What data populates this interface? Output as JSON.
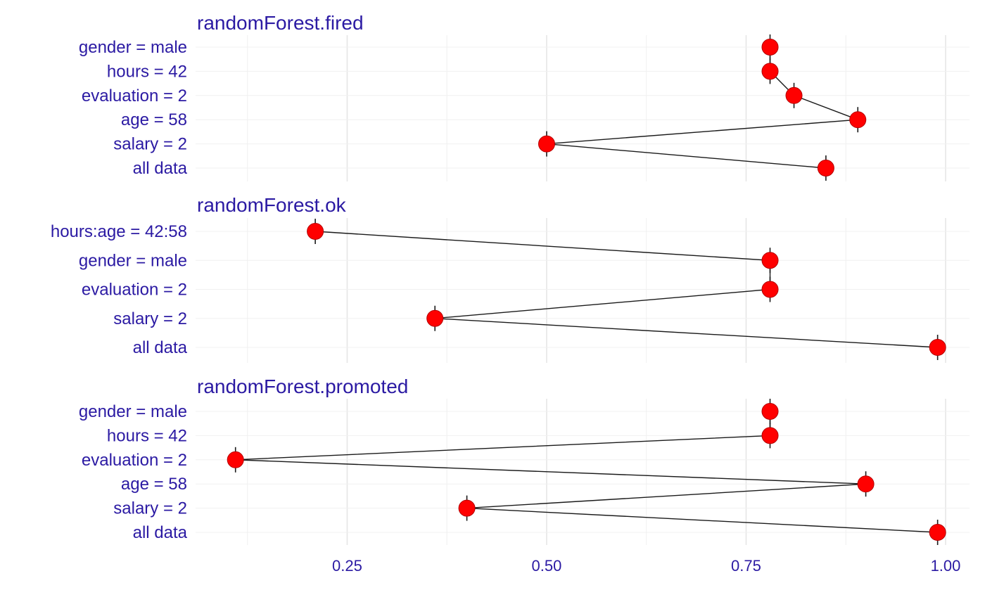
{
  "colors": {
    "text": "#2b1aa3",
    "point": "#ff0000",
    "line": "#1a1a1a"
  },
  "chart_data": [
    {
      "type": "scatter",
      "title": "randomForest.fired",
      "categories": [
        "gender = male",
        "hours = 42",
        "evaluation = 2",
        "age = 58",
        "salary = 2",
        "all data"
      ],
      "values": [
        0.78,
        0.78,
        0.81,
        0.89,
        0.5,
        0.85
      ],
      "xlim": [
        0.06,
        1.03
      ],
      "xticks": [
        "0.25",
        "0.50",
        "0.75",
        "1.00"
      ],
      "xtick_values": [
        0.25,
        0.5,
        0.75,
        1.0
      ],
      "grid": true
    },
    {
      "type": "scatter",
      "title": "randomForest.ok",
      "categories": [
        "hours:age = 42:58",
        "gender = male",
        "evaluation = 2",
        "salary = 2",
        "all data"
      ],
      "values": [
        0.21,
        0.78,
        0.78,
        0.36,
        0.99
      ],
      "xlim": [
        0.06,
        1.03
      ],
      "xticks": [
        "0.25",
        "0.50",
        "0.75",
        "1.00"
      ],
      "xtick_values": [
        0.25,
        0.5,
        0.75,
        1.0
      ],
      "grid": true
    },
    {
      "type": "scatter",
      "title": "randomForest.promoted",
      "categories": [
        "gender = male",
        "hours = 42",
        "evaluation = 2",
        "age = 58",
        "salary = 2",
        "all data"
      ],
      "values": [
        0.78,
        0.78,
        0.11,
        0.9,
        0.4,
        0.99
      ],
      "xlim": [
        0.06,
        1.03
      ],
      "xticks": [
        "0.25",
        "0.50",
        "0.75",
        "1.00"
      ],
      "xtick_values": [
        0.25,
        0.5,
        0.75,
        1.0
      ],
      "grid": true
    }
  ]
}
